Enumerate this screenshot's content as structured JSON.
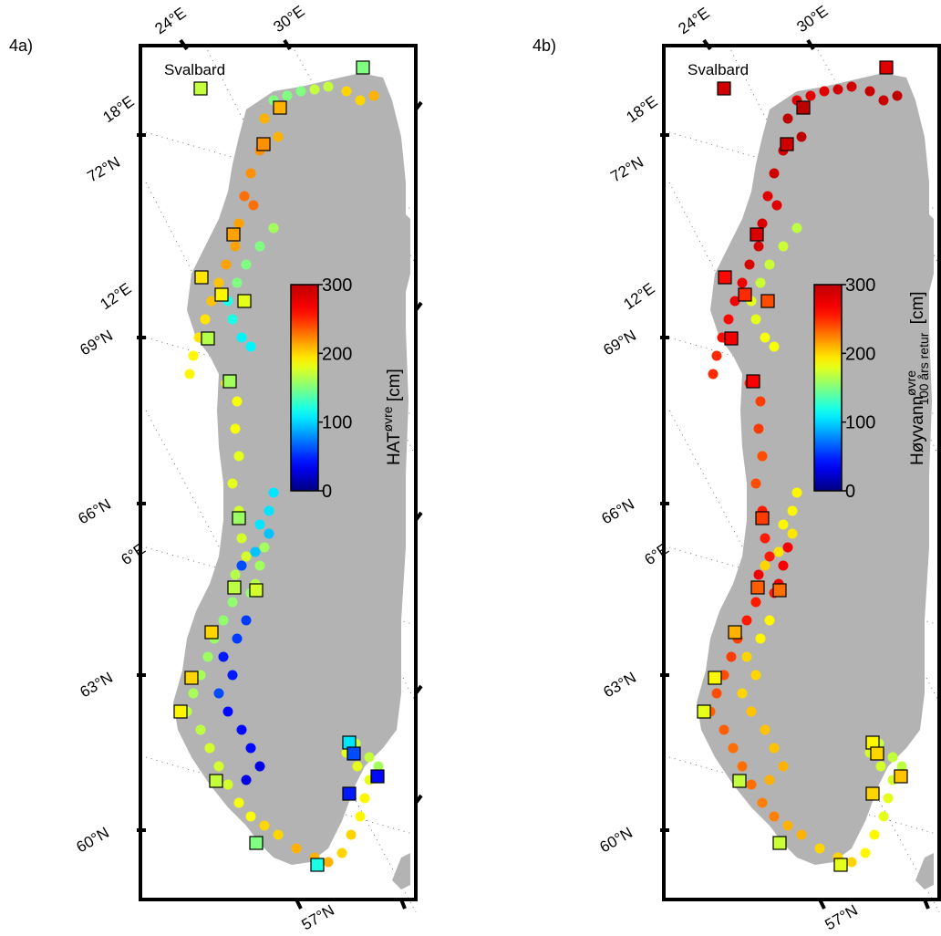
{
  "panels": [
    {
      "id": "a",
      "label": "4a)",
      "svalbard_label": "Svalbard",
      "colorbar_ticks": [
        "0",
        "100",
        "200",
        "300"
      ],
      "colorbar_title_main": "HAT",
      "colorbar_title_sup": "øvre",
      "colorbar_title_sub": "",
      "colorbar_unit": "[cm]"
    },
    {
      "id": "b",
      "label": "4b)",
      "svalbard_label": "Svalbard",
      "colorbar_ticks": [
        "0",
        "100",
        "200",
        "300"
      ],
      "colorbar_title_main": "Høyvann",
      "colorbar_title_sup": "øvre",
      "colorbar_title_sub": "100 års retur",
      "colorbar_unit": "[cm]"
    }
  ],
  "graticule": {
    "lon_labels": [
      "24°E",
      "30°E",
      "18°E",
      "12°E",
      "6°E"
    ],
    "lat_labels": [
      "72°N",
      "69°N",
      "66°N",
      "63°N",
      "60°N",
      "57°N"
    ]
  },
  "colorscale": {
    "name": "jet",
    "min": 0,
    "max": 300,
    "stops": [
      "#00008f",
      "#0000ff",
      "#00ffff",
      "#ffff00",
      "#ff0000",
      "#800000"
    ]
  },
  "land_color": "#b3b3b3",
  "station_values": {
    "a": [
      150,
      170,
      200,
      210,
      220,
      230,
      215,
      205,
      195,
      190,
      185,
      180,
      175,
      165,
      160,
      155,
      158,
      162,
      168,
      175,
      185,
      200,
      210,
      200,
      190,
      180,
      170,
      160,
      150,
      120,
      110,
      105,
      95,
      60,
      40,
      30,
      45,
      55
    ],
    "b": [
      280,
      290,
      295,
      300,
      290,
      280,
      285,
      270,
      260,
      250,
      245,
      240,
      255,
      270,
      265,
      255,
      245,
      240,
      235,
      230,
      225,
      210,
      200,
      190,
      180,
      175,
      170,
      168,
      172,
      180,
      185,
      190,
      195,
      200,
      205,
      210,
      200,
      190
    ]
  }
}
